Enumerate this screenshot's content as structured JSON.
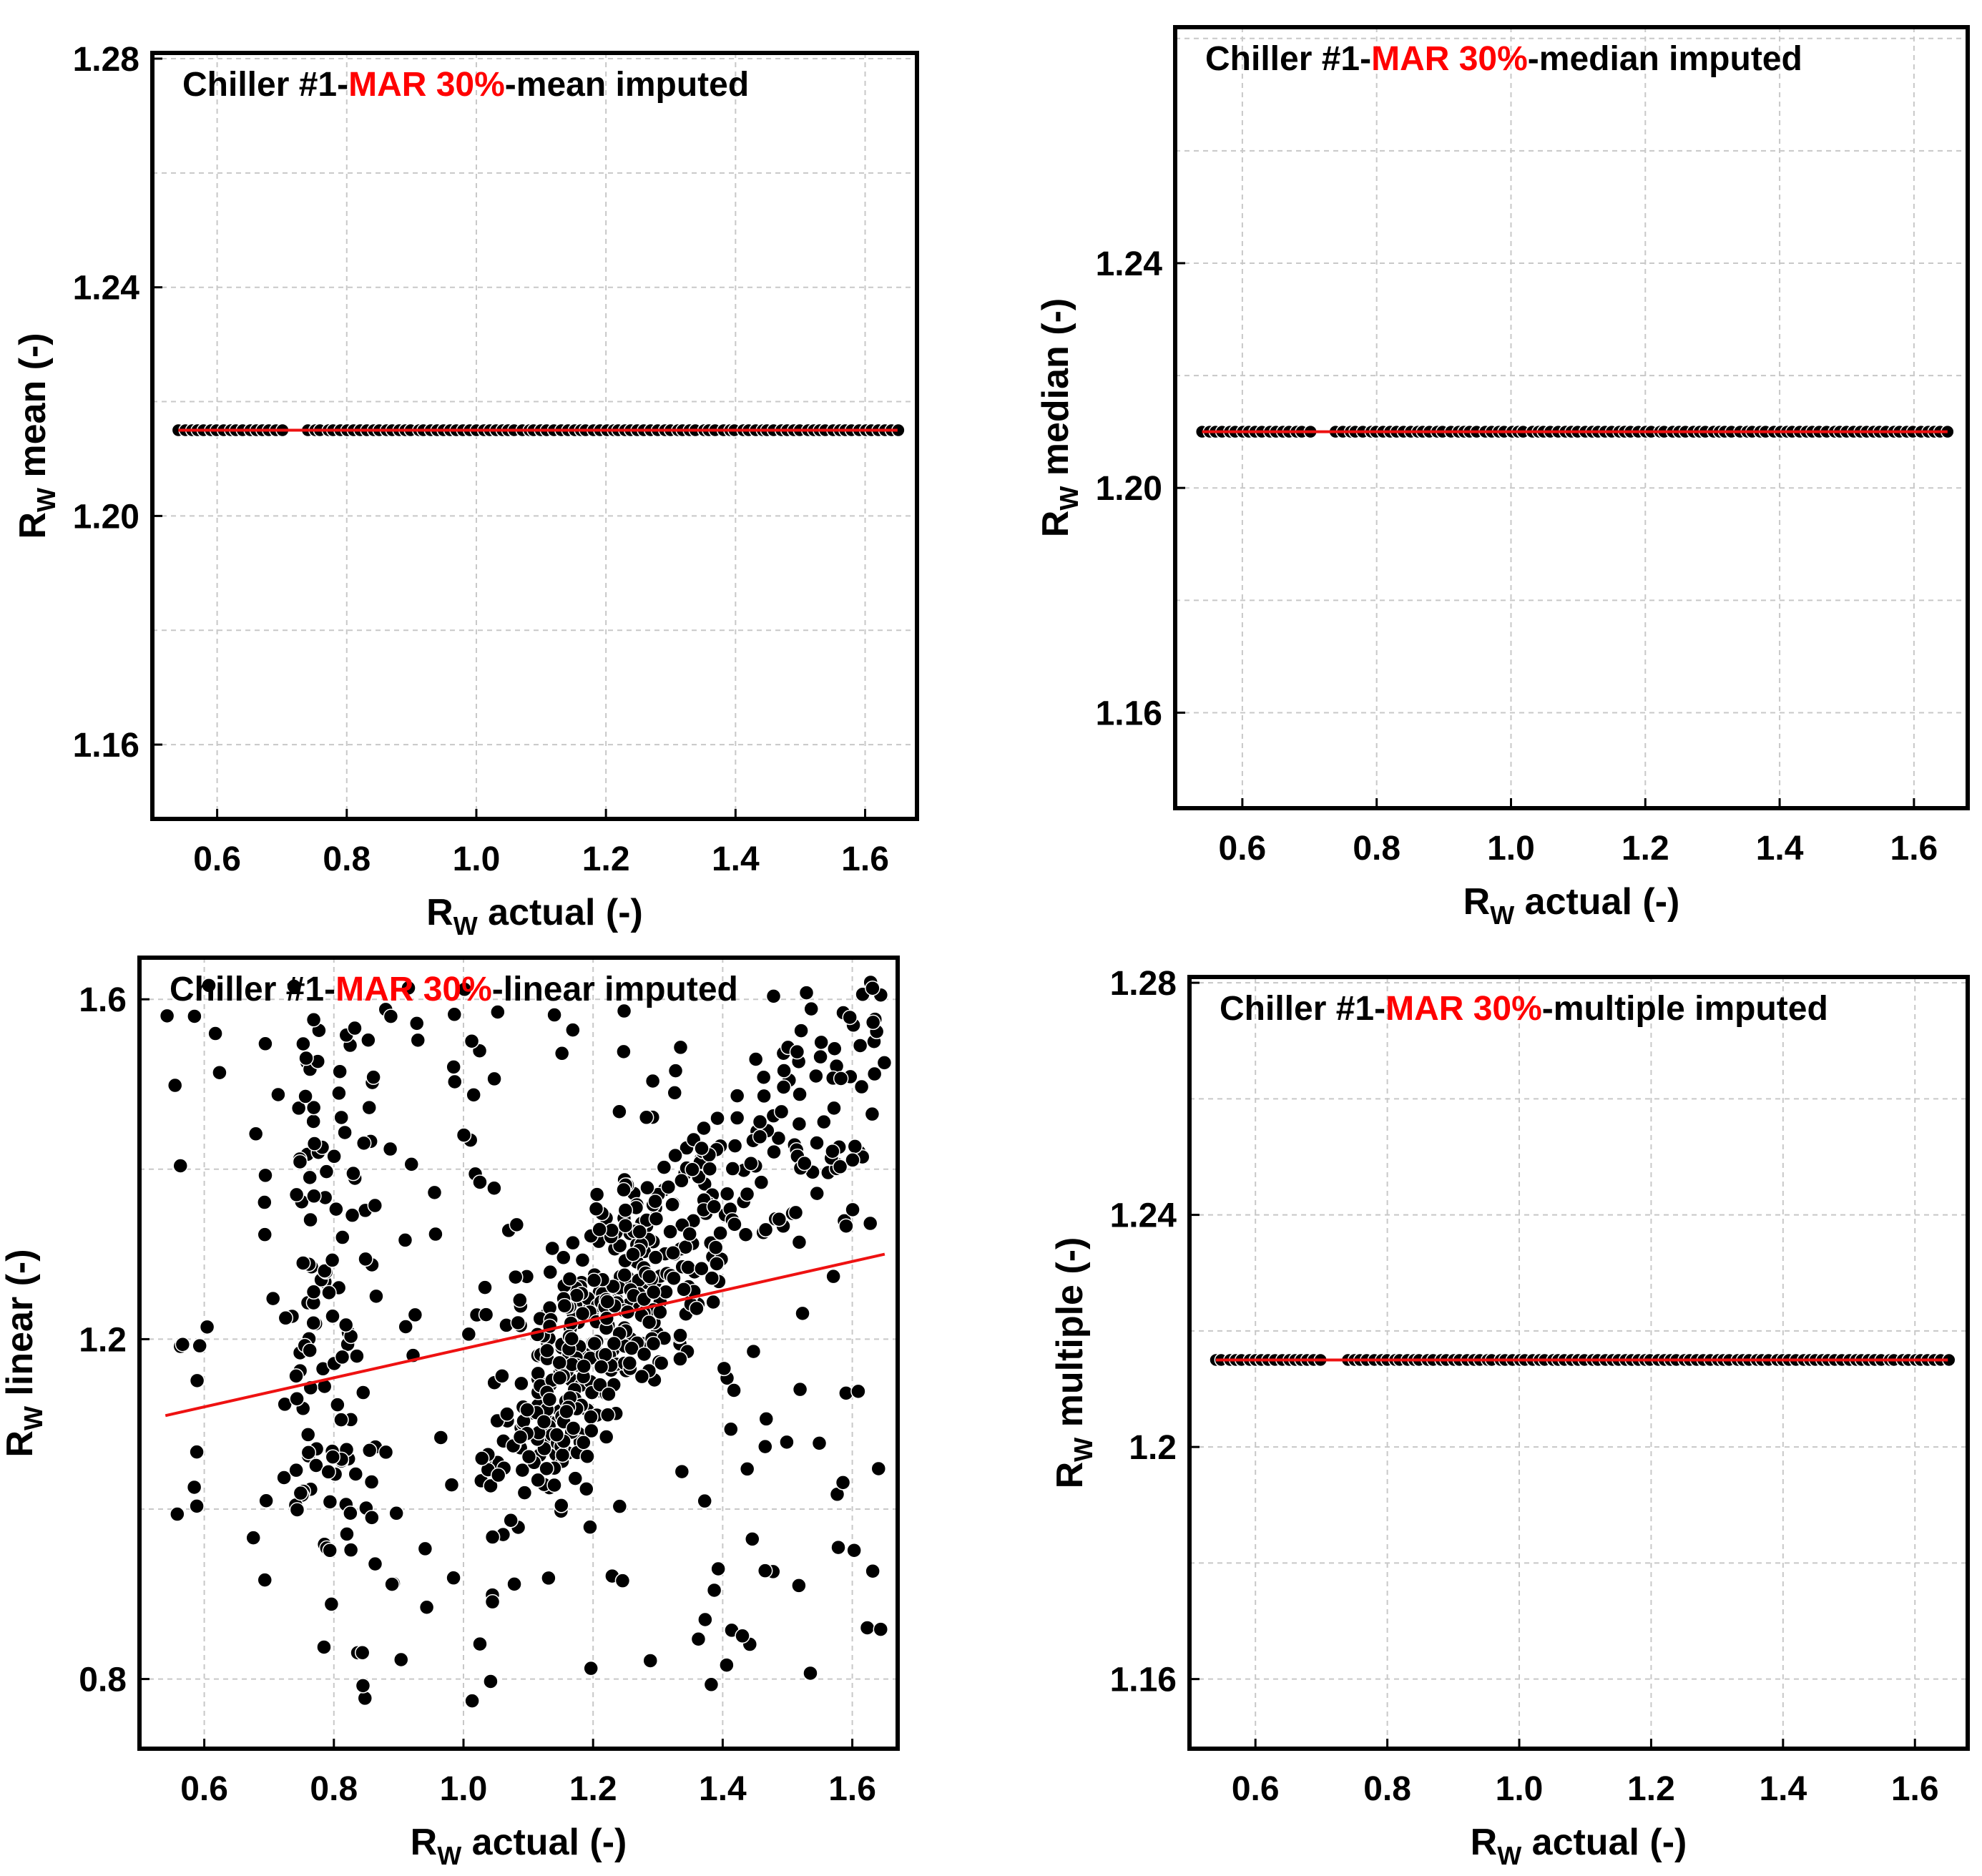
{
  "chart_data": [
    {
      "type": "scatter",
      "title_parts": [
        "Chiller #1-",
        "MAR 30%",
        "-mean imputed"
      ],
      "xlabel_main": "R",
      "xlabel_sub": "W",
      "xlabel_rest": " actual (-)",
      "ylabel_main": "R",
      "ylabel_sub": "W",
      "ylabel_rest": " mean (-)",
      "xlim": [
        0.5,
        1.68
      ],
      "ylim": [
        1.147,
        1.281
      ],
      "xticks": [
        "0.6",
        "0.8",
        "1.0",
        "1.2",
        "1.4",
        "1.6"
      ],
      "yticks": [
        "1.16",
        "1.20",
        "1.24",
        "1.28"
      ],
      "grid": true,
      "mode": "constant",
      "constant_value": 1.215,
      "x_range": [
        0.54,
        1.65
      ],
      "point_count": 112,
      "fit_line": {
        "x": [
          0.54,
          1.65
        ],
        "y": [
          1.215,
          1.215
        ]
      }
    },
    {
      "type": "scatter",
      "title_parts": [
        "Chiller #1-",
        "MAR 30%",
        "-median imputed"
      ],
      "xlabel_main": "R",
      "xlabel_sub": "W",
      "xlabel_rest": " actual (-)",
      "ylabel_main": "R",
      "ylabel_sub": "W",
      "ylabel_rest": " median (-)",
      "xlim": [
        0.5,
        1.68
      ],
      "ylim": [
        1.143,
        1.282
      ],
      "xticks": [
        "0.6",
        "0.8",
        "1.0",
        "1.2",
        "1.4",
        "1.6"
      ],
      "yticks": [
        "1.16",
        "1.20",
        "1.24"
      ],
      "grid": true,
      "mode": "constant",
      "constant_value": 1.21,
      "x_range": [
        0.54,
        1.65
      ],
      "point_count": 112,
      "fit_line": {
        "x": [
          0.54,
          1.65
        ],
        "y": [
          1.21,
          1.21
        ]
      }
    },
    {
      "type": "scatter",
      "title_parts": [
        "Chiller #1-",
        "MAR 30%",
        "-linear imputed"
      ],
      "xlabel_main": "R",
      "xlabel_sub": "W",
      "xlabel_rest": " actual (-)",
      "ylabel_main": "R",
      "ylabel_sub": "W",
      "ylabel_rest": " linear (-)",
      "xlim": [
        0.5,
        1.67
      ],
      "ylim": [
        0.718,
        1.649
      ],
      "xticks": [
        "0.6",
        "0.8",
        "1.0",
        "1.2",
        "1.4",
        "1.6"
      ],
      "yticks": [
        "0.8",
        "1.2",
        "1.6"
      ],
      "grid": true,
      "mode": "cloud",
      "x_range": [
        0.54,
        1.65
      ],
      "y_range": [
        0.75,
        1.62
      ],
      "point_count": 760,
      "fit_line": {
        "x": [
          0.54,
          1.65
        ],
        "y": [
          1.11,
          1.3
        ]
      }
    },
    {
      "type": "scatter",
      "title_parts": [
        "Chiller #1-",
        "MAR 30%",
        "-multiple imputed"
      ],
      "xlabel_main": "R",
      "xlabel_sub": "W",
      "xlabel_rest": " actual (-)",
      "ylabel_main": "R",
      "ylabel_sub": "W",
      "ylabel_rest": " multiple (-)",
      "xlim": [
        0.5,
        1.68
      ],
      "ylim": [
        1.148,
        1.281
      ],
      "xticks": [
        "0.6",
        "0.8",
        "1.0",
        "1.2",
        "1.4",
        "1.6"
      ],
      "yticks": [
        "1.16",
        "1.2",
        "1.24",
        "1.28"
      ],
      "grid": true,
      "mode": "constant",
      "constant_value": 1.215,
      "x_range": [
        0.54,
        1.65
      ],
      "point_count": 112,
      "fit_line": {
        "x": [
          0.54,
          1.65
        ],
        "y": [
          1.215,
          1.215
        ]
      }
    }
  ],
  "colors": {
    "points": "#000000",
    "point_edge": "#ffffff",
    "fit_line": "#ee1111",
    "title_accent": "#ff0000",
    "grid": "#c8c8c8",
    "frame": "#000000"
  }
}
